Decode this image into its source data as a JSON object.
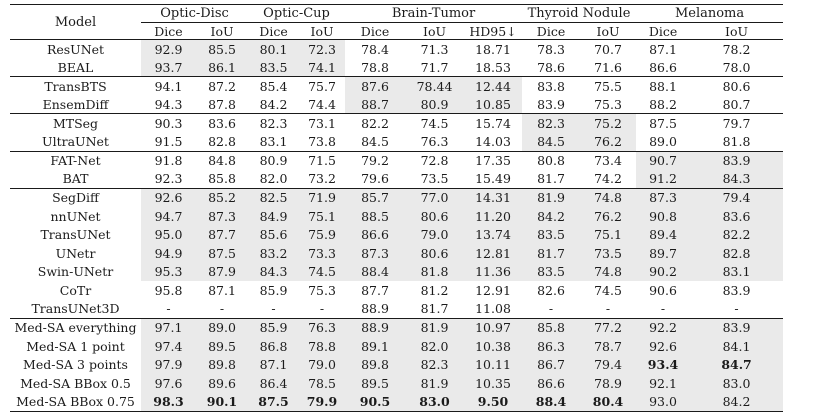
{
  "colors": {
    "shade": "#eaeaea",
    "rule": "#1a1a1a",
    "text": "#1b1b1b",
    "background": "#ffffff"
  },
  "table": {
    "model_header": "Model",
    "groups": [
      {
        "label": "Optic-Disc",
        "cols": [
          "Dice",
          "IoU"
        ]
      },
      {
        "label": "Optic-Cup",
        "cols": [
          "Dice",
          "IoU"
        ]
      },
      {
        "label": "Brain-Tumor",
        "cols": [
          "Dice",
          "IoU",
          "HD95↓"
        ]
      },
      {
        "label": "Thyroid Nodule",
        "cols": [
          "Dice",
          "IoU"
        ]
      },
      {
        "label": "Melanoma",
        "cols": [
          "Dice",
          "IoU"
        ]
      }
    ],
    "rows": [
      {
        "model": "ResUNet",
        "values": [
          "92.9",
          "85.5",
          "80.1",
          "72.3",
          "78.4",
          "71.3",
          "18.71",
          "78.3",
          "70.7",
          "87.1",
          "78.2"
        ],
        "shade": [
          0,
          3
        ],
        "bold": [],
        "group_end": false
      },
      {
        "model": "BEAL",
        "values": [
          "93.7",
          "86.1",
          "83.5",
          "74.1",
          "78.8",
          "71.7",
          "18.53",
          "78.6",
          "71.6",
          "86.6",
          "78.0"
        ],
        "shade": [
          0,
          3
        ],
        "bold": [],
        "group_end": true
      },
      {
        "model": "TransBTS",
        "values": [
          "94.1",
          "87.2",
          "85.4",
          "75.7",
          "87.6",
          "78.44",
          "12.44",
          "83.8",
          "75.5",
          "88.1",
          "80.6"
        ],
        "shade": [
          4,
          6
        ],
        "bold": [],
        "group_end": false
      },
      {
        "model": "EnsemDiff",
        "values": [
          "94.3",
          "87.8",
          "84.2",
          "74.4",
          "88.7",
          "80.9",
          "10.85",
          "83.9",
          "75.3",
          "88.2",
          "80.7"
        ],
        "shade": [
          4,
          6
        ],
        "bold": [],
        "group_end": true
      },
      {
        "model": "MTSeg",
        "values": [
          "90.3",
          "83.6",
          "82.3",
          "73.1",
          "82.2",
          "74.5",
          "15.74",
          "82.3",
          "75.2",
          "87.5",
          "79.7"
        ],
        "shade": [
          7,
          8
        ],
        "bold": [],
        "group_end": false
      },
      {
        "model": "UltraUNet",
        "values": [
          "91.5",
          "82.8",
          "83.1",
          "73.8",
          "84.5",
          "76.3",
          "14.03",
          "84.5",
          "76.2",
          "89.0",
          "81.8"
        ],
        "shade": [
          7,
          8
        ],
        "bold": [],
        "group_end": true
      },
      {
        "model": "FAT-Net",
        "values": [
          "91.8",
          "84.8",
          "80.9",
          "71.5",
          "79.2",
          "72.8",
          "17.35",
          "80.8",
          "73.4",
          "90.7",
          "83.9"
        ],
        "shade": [
          9,
          10
        ],
        "bold": [],
        "group_end": false
      },
      {
        "model": "BAT",
        "values": [
          "92.3",
          "85.8",
          "82.0",
          "73.2",
          "79.6",
          "73.5",
          "15.49",
          "81.7",
          "74.2",
          "91.2",
          "84.3"
        ],
        "shade": [
          9,
          10
        ],
        "bold": [],
        "group_end": true
      },
      {
        "model": "SegDiff",
        "values": [
          "92.6",
          "85.2",
          "82.5",
          "71.9",
          "85.7",
          "77.0",
          "14.31",
          "81.9",
          "74.8",
          "87.3",
          "79.4"
        ],
        "shade": [
          0,
          10
        ],
        "bold": [],
        "group_end": false
      },
      {
        "model": "nnUNet",
        "values": [
          "94.7",
          "87.3",
          "84.9",
          "75.1",
          "88.5",
          "80.6",
          "11.20",
          "84.2",
          "76.2",
          "90.8",
          "83.6"
        ],
        "shade": [
          0,
          10
        ],
        "bold": [],
        "group_end": false
      },
      {
        "model": "TransUNet",
        "values": [
          "95.0",
          "87.7",
          "85.6",
          "75.9",
          "86.6",
          "79.0",
          "13.74",
          "83.5",
          "75.1",
          "89.4",
          "82.2"
        ],
        "shade": [
          0,
          10
        ],
        "bold": [],
        "group_end": false
      },
      {
        "model": "UNetr",
        "values": [
          "94.9",
          "87.5",
          "83.2",
          "73.3",
          "87.3",
          "80.6",
          "12.81",
          "81.7",
          "73.5",
          "89.7",
          "82.8"
        ],
        "shade": [
          0,
          10
        ],
        "bold": [],
        "group_end": false
      },
      {
        "model": "Swin-UNetr",
        "values": [
          "95.3",
          "87.9",
          "84.3",
          "74.5",
          "88.4",
          "81.8",
          "11.36",
          "83.5",
          "74.8",
          "90.2",
          "83.1"
        ],
        "shade": [
          0,
          10
        ],
        "bold": [],
        "group_end": false
      },
      {
        "model": "CoTr",
        "values": [
          "95.8",
          "87.1",
          "85.9",
          "75.3",
          "87.7",
          "81.2",
          "12.91",
          "82.6",
          "74.5",
          "90.6",
          "83.9"
        ],
        "shade": null,
        "bold": [],
        "group_end": false
      },
      {
        "model": "TransUNet3D",
        "values": [
          "-",
          "-",
          "-",
          "-",
          "88.9",
          "81.7",
          "11.08",
          "-",
          "-",
          "-",
          "-"
        ],
        "shade": null,
        "bold": [],
        "group_end": true
      },
      {
        "model": "Med-SA everything",
        "values": [
          "97.1",
          "89.0",
          "85.9",
          "76.3",
          "88.9",
          "81.9",
          "10.97",
          "85.8",
          "77.2",
          "92.2",
          "83.9"
        ],
        "shade": [
          0,
          10
        ],
        "bold": [],
        "group_end": false
      },
      {
        "model": "Med-SA 1 point",
        "values": [
          "97.4",
          "89.5",
          "86.8",
          "78.8",
          "89.1",
          "82.0",
          "10.38",
          "86.3",
          "78.7",
          "92.6",
          "84.1"
        ],
        "shade": [
          0,
          10
        ],
        "bold": [],
        "group_end": false
      },
      {
        "model": "Med-SA 3 points",
        "values": [
          "97.9",
          "89.8",
          "87.1",
          "79.0",
          "89.8",
          "82.3",
          "10.11",
          "86.7",
          "79.4",
          "93.4",
          "84.7"
        ],
        "shade": [
          0,
          10
        ],
        "bold": [
          9,
          10
        ],
        "group_end": false
      },
      {
        "model": "Med-SA BBox 0.5",
        "values": [
          "97.6",
          "89.6",
          "86.4",
          "78.5",
          "89.5",
          "81.9",
          "10.35",
          "86.6",
          "78.9",
          "92.1",
          "83.0"
        ],
        "shade": [
          0,
          10
        ],
        "bold": [],
        "group_end": false
      },
      {
        "model": "Med-SA BBox 0.75",
        "values": [
          "98.3",
          "90.1",
          "87.5",
          "79.9",
          "90.5",
          "83.0",
          "9.50",
          "88.4",
          "80.4",
          "93.0",
          "84.2"
        ],
        "shade": [
          0,
          10
        ],
        "bold": [
          0,
          1,
          2,
          3,
          4,
          5,
          6,
          7,
          8
        ],
        "group_end": false
      }
    ]
  }
}
